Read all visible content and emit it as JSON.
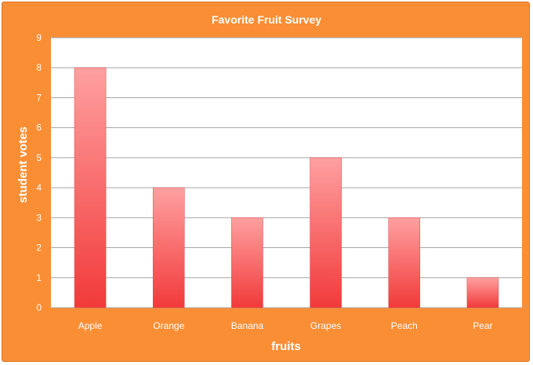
{
  "chart_data": {
    "type": "bar",
    "title": "Favorite Fruit Survey",
    "xlabel": "fruits",
    "ylabel": "student votes",
    "categories": [
      "Apple",
      "Orange",
      "Banana",
      "Grapes",
      "Peach",
      "Pear"
    ],
    "values": [
      8,
      4,
      3,
      5,
      3,
      1
    ],
    "ylim": [
      0,
      9
    ],
    "yticks": [
      "0",
      "1",
      "2",
      "3",
      "4",
      "5",
      "6",
      "7",
      "8",
      "9"
    ],
    "grid": true,
    "legend": "none"
  },
  "colors": {
    "background": "#FA8E35",
    "plot_area": "#FFFFFF",
    "bar_top": "#FFA0A0",
    "bar_bottom": "#F23A3A",
    "gridline": "#A6A6A6",
    "text": "#FFFFFF"
  }
}
